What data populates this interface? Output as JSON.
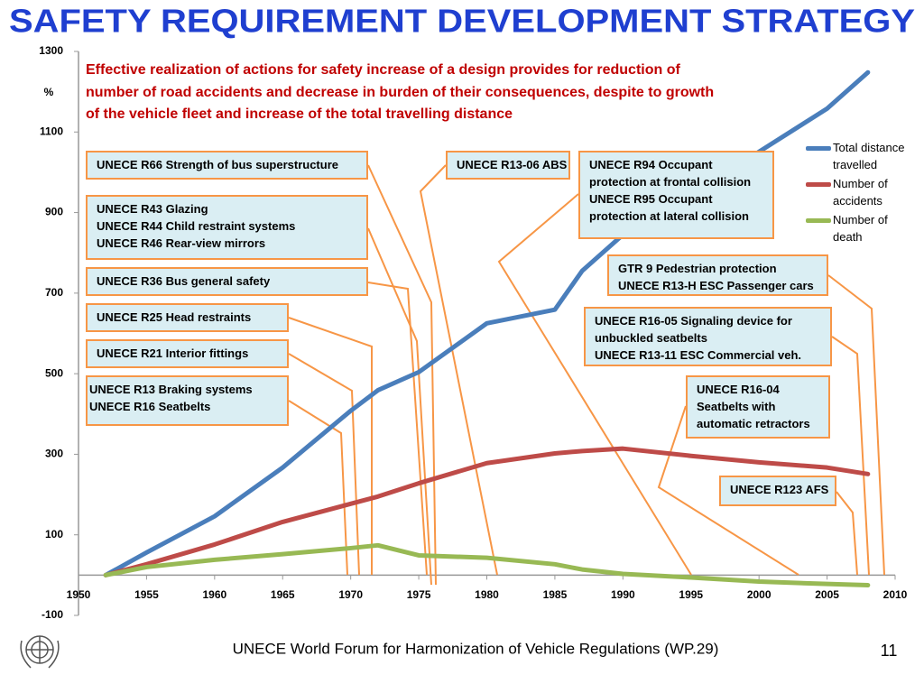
{
  "header": {
    "title": "SAFETY REQUIREMENT DEVELOPMENT STRATEGY"
  },
  "chart_data": {
    "type": "line",
    "subtitle": [
      "Effective realization of actions for safety increase of a design provides for reduction of",
      "number of road accidents and decrease in burden of their consequences, despite to growth",
      "of the vehicle fleet and increase of the total travelling distance"
    ],
    "y_label": "%",
    "x": [
      1952,
      1955,
      1960,
      1965,
      1970,
      1972,
      1975,
      1980,
      1985,
      1987,
      1990,
      1995,
      2000,
      2005,
      2008
    ],
    "series": [
      {
        "name": "Total distance travelled",
        "color": "#4a7ebb",
        "values": [
          0,
          56,
          146,
          267,
          408,
          459,
          504,
          625,
          659,
          755,
          845,
          939,
          1051,
          1158,
          1248
        ]
      },
      {
        "name": "Number of accidents",
        "color": "#be4b48",
        "values": [
          0,
          27,
          76,
          132,
          177,
          195,
          228,
          278,
          302,
          308,
          314,
          296,
          280,
          267,
          251
        ]
      },
      {
        "name": "Number of death",
        "color": "#98b954",
        "values": [
          0,
          20,
          38,
          52,
          67,
          74,
          49,
          43,
          27,
          14,
          3,
          -6,
          -16,
          -22,
          -25
        ]
      }
    ],
    "xlim": [
      1950,
      2010
    ],
    "xticks": [
      1950,
      1955,
      1960,
      1965,
      1970,
      1975,
      1980,
      1985,
      1990,
      1995,
      2000,
      2005,
      2010
    ],
    "ylim": [
      -100,
      1300
    ],
    "yticks": [
      -100,
      100,
      300,
      500,
      700,
      900,
      1100,
      1300
    ],
    "annotations": [
      {
        "lines": [
          "UNECE R66 Strength of bus superstructure"
        ]
      },
      {
        "lines": [
          "UNECE R43 Glazing",
          "UNECE R44 Child restraint systems",
          "UNECE R46 Rear-view mirrors"
        ]
      },
      {
        "lines": [
          "UNECE R36 Bus general safety"
        ]
      },
      {
        "lines": [
          "UNECE R25 Head restraints"
        ]
      },
      {
        "lines": [
          "UNECE R21 Interior fittings"
        ]
      },
      {
        "lines": [
          "UNECE R13 Braking systems",
          "UNECE R16 Seatbelts"
        ]
      },
      {
        "lines": [
          "UNECE R13-06 ABS"
        ]
      },
      {
        "lines": [
          "UNECE R94 Occupant",
          "protection at frontal collision",
          "UNECE R95 Occupant",
          "protection at lateral collision"
        ]
      },
      {
        "lines": [
          "GTR 9 Pedestrian protection",
          "UNECE R13-H ESC Passenger cars"
        ]
      },
      {
        "lines": [
          "UNECE R16-05 Signaling device for",
          "unbuckled seatbelts",
          "UNECE R13-11 ESC Commercial veh."
        ]
      },
      {
        "lines": [
          "UNECE R16-04",
          "Seatbelts with",
          "automatic retractors"
        ]
      },
      {
        "lines": [
          "UNECE R123 AFS"
        ]
      }
    ]
  },
  "footer": {
    "text": "UNECE World Forum for Harmonization of Vehicle Regulations (WP.29)",
    "page": "11"
  }
}
